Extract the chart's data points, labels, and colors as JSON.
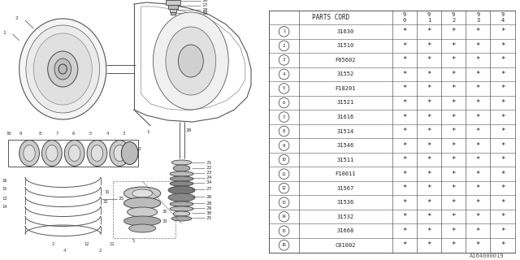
{
  "bg_color": "#ffffff",
  "line_color": "#555555",
  "text_color": "#333333",
  "watermark": "A164000019",
  "parts": [
    {
      "num": 1,
      "code": "31630"
    },
    {
      "num": 2,
      "code": "31510"
    },
    {
      "num": 3,
      "code": "F05602"
    },
    {
      "num": 4,
      "code": "31552"
    },
    {
      "num": 5,
      "code": "F18201"
    },
    {
      "num": 6,
      "code": "31521"
    },
    {
      "num": 7,
      "code": "31616"
    },
    {
      "num": 8,
      "code": "31514"
    },
    {
      "num": 9,
      "code": "31546"
    },
    {
      "num": 10,
      "code": "31511"
    },
    {
      "num": 11,
      "code": "F10011"
    },
    {
      "num": 12,
      "code": "31567"
    },
    {
      "num": 13,
      "code": "31536"
    },
    {
      "num": 14,
      "code": "31532"
    },
    {
      "num": 15,
      "code": "31668"
    },
    {
      "num": 16,
      "code": "C01002"
    }
  ],
  "year_headers": [
    "9\n0",
    "9\n1",
    "9\n2",
    "9\n3",
    "9\n4"
  ]
}
